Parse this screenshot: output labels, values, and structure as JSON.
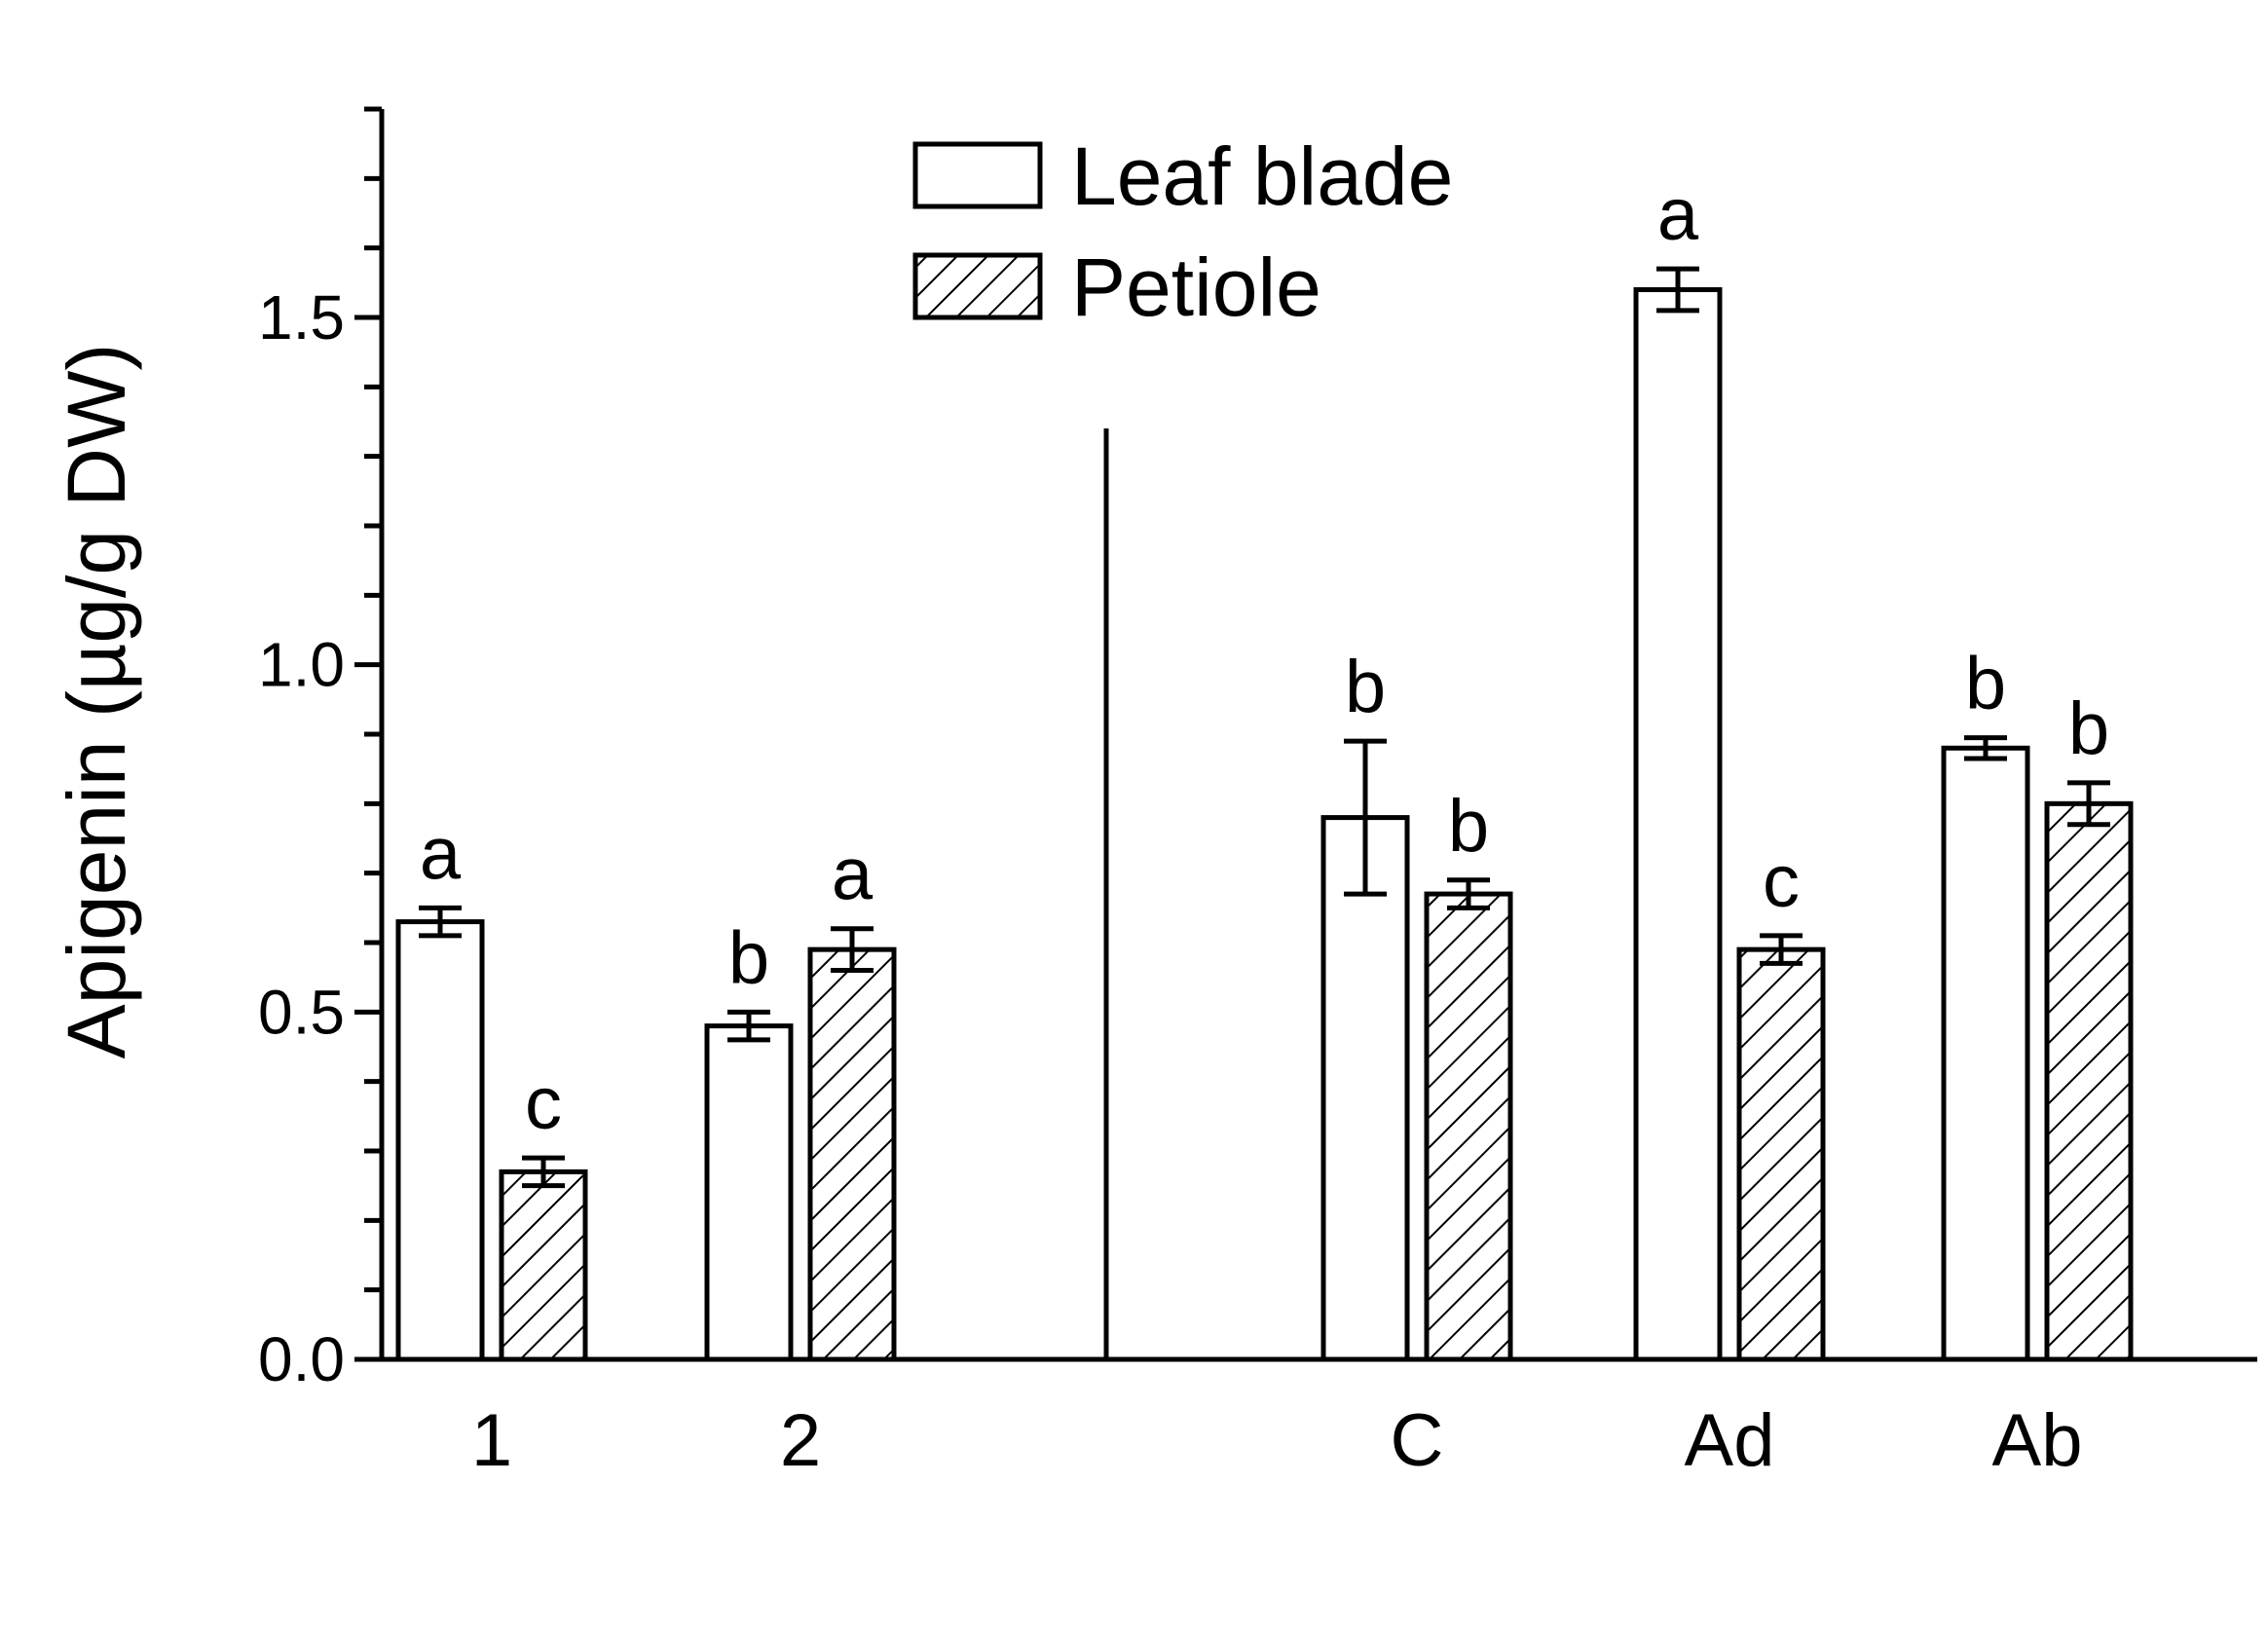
{
  "chart_data": {
    "type": "bar",
    "title": "",
    "xlabel": "",
    "ylabel": "Apigenin (µg/g DW)",
    "ylim": [
      0,
      1.8
    ],
    "yticks": [
      0.0,
      0.5,
      1.0,
      1.5
    ],
    "ytick_labels": [
      "0.0",
      "0.5",
      "1.0",
      "1.5"
    ],
    "minor_tick_step": 0.1,
    "grid": false,
    "legend_position": "top-center",
    "categories": [
      "1",
      "2",
      "C",
      "Ad",
      "Ab"
    ],
    "group_divider_after_index": 1,
    "series": [
      {
        "name": "Leaf blade",
        "fill": "open",
        "values": [
          0.63,
          0.48,
          0.78,
          1.54,
          0.88
        ],
        "errors": [
          0.02,
          0.02,
          0.11,
          0.03,
          0.015
        ],
        "significance": [
          "a",
          "b",
          "b",
          "a",
          "b"
        ]
      },
      {
        "name": "Petiole",
        "fill": "hatched",
        "values": [
          0.27,
          0.59,
          0.67,
          0.59,
          0.8
        ],
        "errors": [
          0.02,
          0.03,
          0.02,
          0.02,
          0.03
        ],
        "significance": [
          "c",
          "a",
          "b",
          "c",
          "b"
        ]
      }
    ],
    "colors": {
      "stroke": "#000000",
      "fill": "#ffffff"
    }
  }
}
